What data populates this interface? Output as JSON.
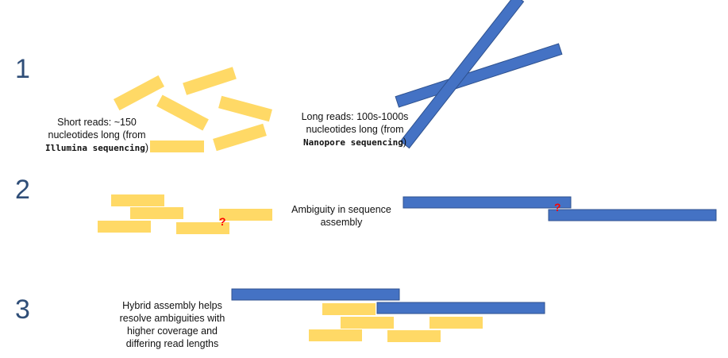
{
  "steps": [
    "1",
    "2",
    "3"
  ],
  "short_reads_label": {
    "line1": "Short reads: ~150",
    "line2": "nucleotides long (from",
    "source": "Illumina sequencing",
    "close": ")"
  },
  "long_reads_label": {
    "line1": "Long reads: 100s-1000s",
    "line2": "nucleotides long (from",
    "source": "Nanopore sequencing",
    "close": ")"
  },
  "ambiguity_label": {
    "line1": "Ambiguity in sequence",
    "line2": "assembly"
  },
  "hybrid_label": {
    "line1": "Hybrid assembly helps",
    "line2": "resolve ambiguities with",
    "line3": "higher coverage and",
    "line4": "differing read lengths"
  },
  "question_marks": [
    "?",
    "?"
  ],
  "colors": {
    "short_read": "#ffd966",
    "long_read": "#4472c4",
    "step_number": "#2f4e78",
    "question_mark": "#ff0000"
  }
}
